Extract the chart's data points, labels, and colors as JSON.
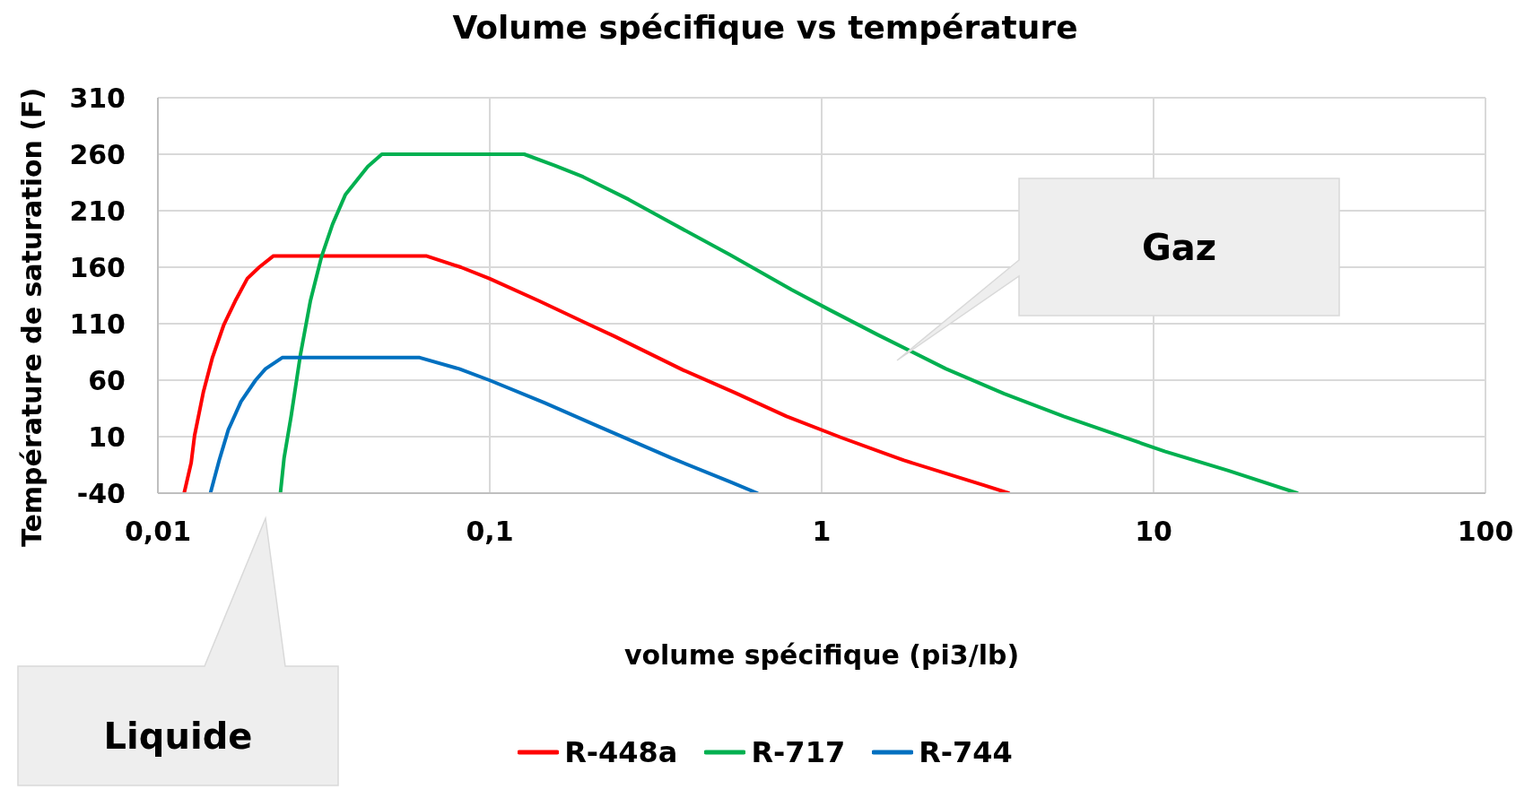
{
  "chart_data": {
    "type": "line",
    "title": "Volume spécifique vs température",
    "xlabel": "volume spécifique (pi3/lb)",
    "ylabel": "Température de saturation (F)",
    "log": "x",
    "xlim": [
      0.01,
      100
    ],
    "xticks": [
      {
        "value": 0.01,
        "label": "0,01"
      },
      {
        "value": 0.1,
        "label": "0,1"
      },
      1,
      10,
      100
    ],
    "ylim": [
      -40,
      310
    ],
    "yticks": [
      -40,
      10,
      60,
      110,
      160,
      210,
      260,
      310
    ],
    "grid": true,
    "legend": "bottom",
    "marker": "none",
    "line_style": "solid",
    "annotations": [
      "Gaz",
      "Liquide"
    ],
    "series": [
      {
        "name": "R-448a",
        "color": "#ff0000",
        "x": [
          0.012,
          0.0126,
          0.0129,
          0.0137,
          0.0146,
          0.0158,
          0.0171,
          0.0186,
          0.0202,
          0.0223,
          0.0643,
          0.0818,
          0.0997,
          0.141,
          0.2,
          0.237,
          0.382,
          0.547,
          0.784,
          1.15,
          1.77,
          3.08,
          3.66
        ],
        "values": [
          -40,
          -13,
          11,
          49,
          80,
          109,
          130,
          150,
          160,
          170,
          170,
          160,
          150,
          130,
          109,
          99,
          69,
          49,
          28,
          9,
          -11,
          -33,
          -40
        ]
      },
      {
        "name": "R-717",
        "color": "#00b050",
        "x": [
          0.0234,
          0.024,
          0.0252,
          0.0269,
          0.0288,
          0.0311,
          0.0336,
          0.0367,
          0.0429,
          0.0473,
          0.127,
          0.157,
          0.191,
          0.262,
          0.353,
          0.53,
          0.813,
          1.06,
          1.48,
          2.37,
          3.55,
          5.36,
          10.8,
          16.8,
          27.1
        ],
        "values": [
          -40,
          -9,
          28,
          83,
          130,
          169,
          198,
          224,
          249,
          260,
          260,
          250,
          240,
          220,
          199,
          171,
          140,
          122,
          100,
          70,
          48,
          28,
          -3,
          -20,
          -40
        ]
      },
      {
        "name": "R-744",
        "color": "#0070c0",
        "x": [
          0.0144,
          0.0147,
          0.0153,
          0.0163,
          0.0178,
          0.0197,
          0.0211,
          0.0237,
          0.0615,
          0.0809,
          0.0997,
          0.146,
          0.209,
          0.353,
          0.53,
          0.64
        ],
        "values": [
          -40,
          -30,
          -11,
          16,
          41,
          60,
          70,
          80,
          80,
          70,
          60,
          40,
          20,
          -9,
          -30,
          -40
        ]
      }
    ]
  }
}
